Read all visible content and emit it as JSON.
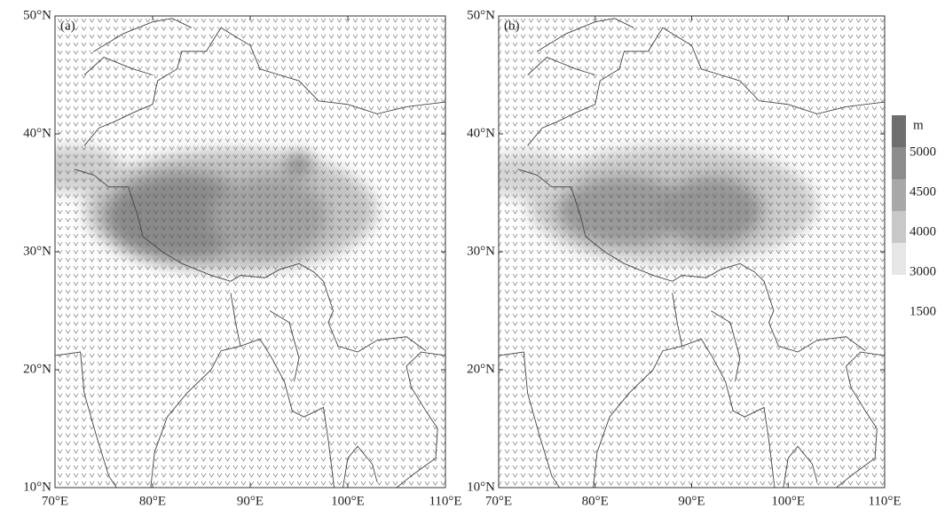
{
  "panels": [
    {
      "label": "(a)"
    },
    {
      "label": "(b)"
    }
  ],
  "map": {
    "xlim": [
      70,
      110
    ],
    "ylim": [
      10,
      50
    ],
    "xticks": [
      {
        "value": 70,
        "label": "70°E"
      },
      {
        "value": 80,
        "label": "80°E"
      },
      {
        "value": 90,
        "label": "90°E"
      },
      {
        "value": 100,
        "label": "100°E"
      },
      {
        "value": 110,
        "label": "110°E"
      }
    ],
    "yticks": [
      {
        "value": 10,
        "label": "10°N"
      },
      {
        "value": 20,
        "label": "20°N"
      },
      {
        "value": 30,
        "label": "30°N"
      },
      {
        "value": 40,
        "label": "40°N"
      },
      {
        "value": 50,
        "label": "50°N"
      }
    ]
  },
  "colorbar": {
    "unit": "m",
    "levels": [
      5000,
      4500,
      4000,
      3000,
      1500
    ],
    "colors": [
      "#6e6e6e",
      "#8c8c8c",
      "#a8a8a8",
      "#c8c8c8",
      "#e6e6e6"
    ]
  }
}
